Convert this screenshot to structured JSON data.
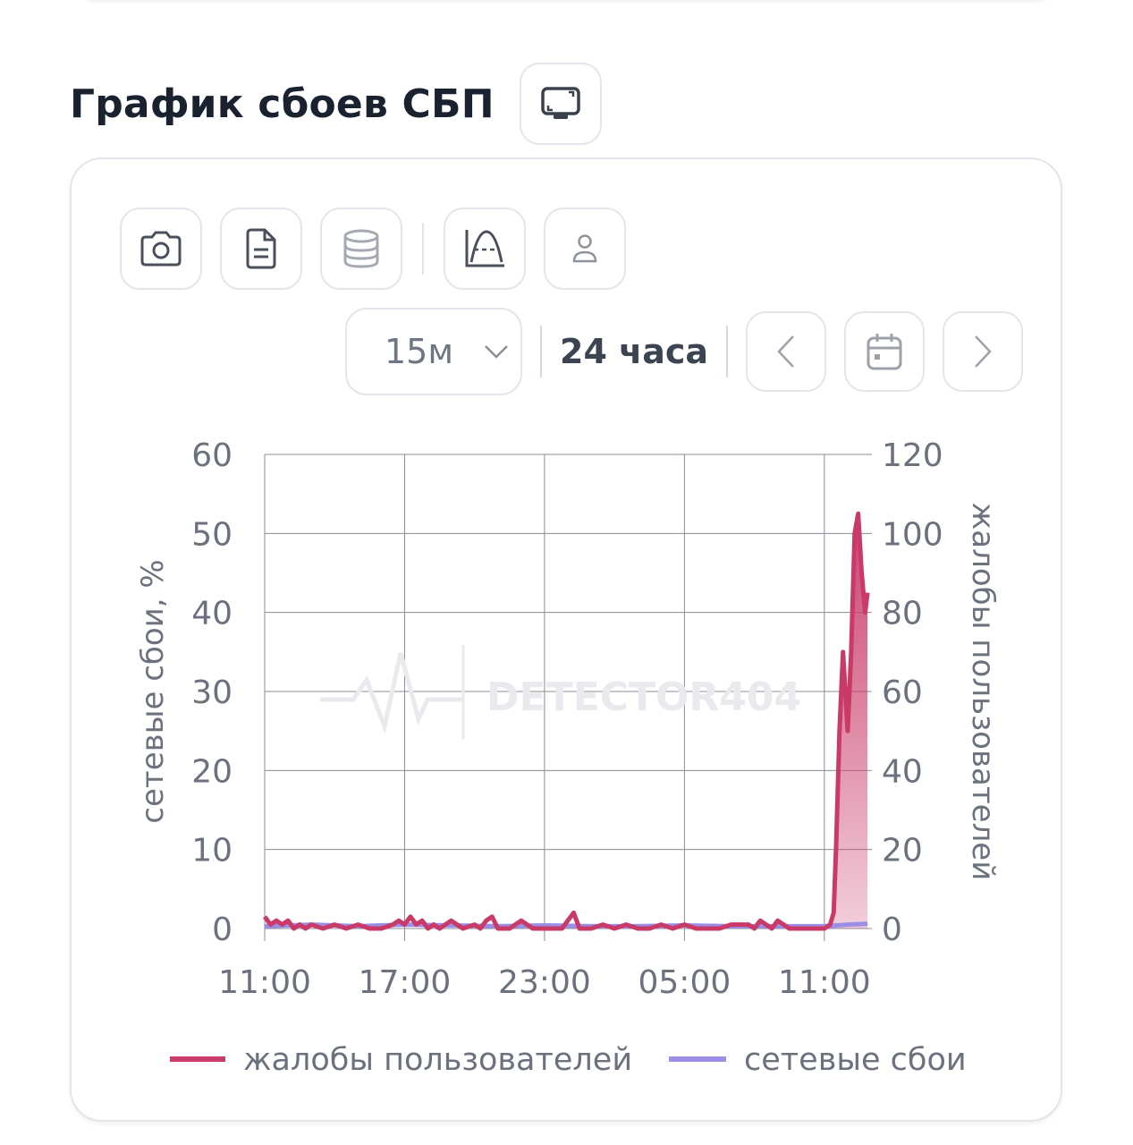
{
  "header": {
    "title": "График сбоев СБП"
  },
  "toolbar": {
    "buttons": [
      {
        "icon": "camera-icon"
      },
      {
        "icon": "document-icon"
      },
      {
        "icon": "database-icon"
      },
      {
        "icon": "curve-icon"
      },
      {
        "icon": "user-icon"
      }
    ]
  },
  "controls": {
    "interval": "15м",
    "range": "24 часа"
  },
  "watermark": "DETECTOR404",
  "colors": {
    "complaints": "#c93a68",
    "outages": "#9b8ee6",
    "grid": "#888d96",
    "tick": "#6b717d"
  },
  "chart_data": {
    "type": "line",
    "title": "",
    "x_ticks": [
      "11:00",
      "17:00",
      "23:00",
      "05:00",
      "11:00"
    ],
    "x_range": [
      0,
      26
    ],
    "y_left": {
      "label": "сетевые сбои, %",
      "ticks": [
        0,
        10,
        20,
        30,
        40,
        50,
        60
      ],
      "range": [
        0,
        60
      ]
    },
    "y_right": {
      "label": "жалобы пользователей",
      "ticks": [
        0,
        20,
        40,
        60,
        80,
        100,
        120
      ],
      "range": [
        0,
        120
      ]
    },
    "grid": true,
    "legend": "bottom",
    "series": [
      {
        "name": "жалобы пользователей",
        "axis": "right",
        "x": [
          0,
          0.25,
          0.5,
          0.75,
          1.0,
          1.25,
          1.5,
          1.75,
          2.0,
          2.5,
          3.0,
          3.5,
          4.0,
          4.5,
          5.0,
          5.5,
          5.75,
          6.0,
          6.25,
          6.5,
          6.75,
          7.0,
          7.25,
          7.5,
          8.0,
          8.5,
          9.0,
          9.25,
          9.5,
          9.75,
          10.0,
          10.5,
          11.0,
          11.5,
          12.0,
          12.75,
          13.0,
          13.25,
          13.5,
          14.0,
          14.5,
          15.0,
          15.5,
          16.0,
          16.5,
          17.0,
          17.5,
          18.0,
          18.5,
          19.0,
          19.5,
          20.0,
          20.75,
          21.0,
          21.25,
          21.75,
          22.0,
          22.25,
          22.5,
          23.75,
          24.0,
          24.25,
          24.4,
          24.5,
          24.65,
          24.8,
          25.0,
          25.15,
          25.3,
          25.45,
          25.6,
          25.75,
          25.85
        ],
        "values": [
          3,
          1,
          2,
          1,
          2,
          0,
          1,
          0,
          1,
          0,
          1,
          0,
          1,
          0,
          0,
          1,
          2,
          1,
          3,
          1,
          2,
          0,
          1,
          0,
          2,
          0,
          1,
          0,
          2,
          3,
          0,
          0,
          2,
          0,
          0,
          0,
          2,
          4,
          0,
          0,
          1,
          0,
          1,
          0,
          0,
          1,
          0,
          1,
          0,
          0,
          0,
          1,
          1,
          0,
          2,
          0,
          2,
          1,
          0,
          0,
          0,
          1,
          4,
          20,
          50,
          70,
          50,
          70,
          100,
          105,
          90,
          80,
          85
        ]
      },
      {
        "name": "сетевые сбои",
        "axis": "left",
        "x": [
          0,
          2,
          4,
          6,
          8,
          10,
          12,
          14,
          16,
          18,
          20,
          22,
          24,
          25,
          25.85
        ],
        "values": [
          0.3,
          0.5,
          0.3,
          0.5,
          0.4,
          0.3,
          0.4,
          0.3,
          0.3,
          0.4,
          0.3,
          0.3,
          0.3,
          0.5,
          0.6
        ]
      }
    ]
  }
}
